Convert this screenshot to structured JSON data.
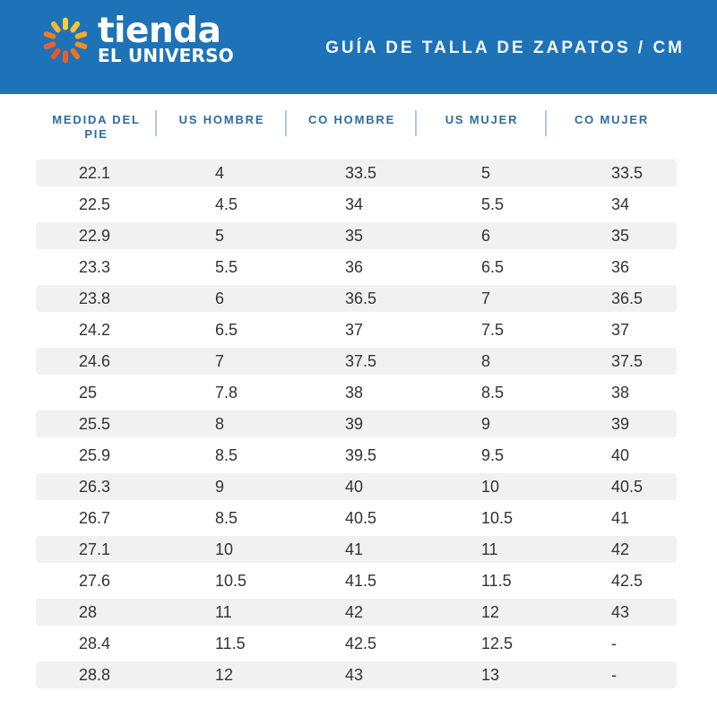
{
  "header": {
    "brand": {
      "line1": "tienda",
      "line2": "EL UNIVERSO"
    },
    "title": "GUÍA DE TALLA DE ZAPATOS / CM"
  },
  "colors": {
    "header_background": "#1E73B8",
    "column_header_text": "#2B6CA3",
    "column_divider": "#AFC9DE",
    "row_stripe": "#F1F1F1",
    "cell_text": "#333333",
    "logo_petal_colors": [
      "#FFCE33",
      "#FFC52F",
      "#FBAB2B",
      "#F68D26",
      "#F1721F",
      "#ED5F27",
      "#E8552C",
      "#EA5E2E",
      "#F07E28",
      "#FAB52D"
    ]
  },
  "chart_data": {
    "type": "table",
    "title": "GUÍA DE TALLA DE ZAPATOS / CM",
    "columns": [
      "MEDIDA DEL PIE",
      "US HOMBRE",
      "CO HOMBRE",
      "US MUJER",
      "CO MUJER"
    ],
    "rows": [
      [
        "22.1",
        "4",
        "33.5",
        "5",
        "33.5"
      ],
      [
        "22.5",
        "4.5",
        "34",
        "5.5",
        "34"
      ],
      [
        "22.9",
        "5",
        "35",
        "6",
        "35"
      ],
      [
        "23.3",
        "5.5",
        "36",
        "6.5",
        "36"
      ],
      [
        "23.8",
        "6",
        "36.5",
        "7",
        "36.5"
      ],
      [
        "24.2",
        "6.5",
        "37",
        "7.5",
        "37"
      ],
      [
        "24.6",
        "7",
        "37.5",
        "8",
        "37.5"
      ],
      [
        "25",
        "7.8",
        "38",
        "8.5",
        "38"
      ],
      [
        "25.5",
        "8",
        "39",
        "9",
        "39"
      ],
      [
        "25.9",
        "8.5",
        "39.5",
        "9.5",
        "40"
      ],
      [
        "26.3",
        "9",
        "40",
        "10",
        "40.5"
      ],
      [
        "26.7",
        "8.5",
        "40.5",
        "10.5",
        "41"
      ],
      [
        "27.1",
        "10",
        "41",
        "11",
        "42"
      ],
      [
        "27.6",
        "10.5",
        "41.5",
        "11.5",
        "42.5"
      ],
      [
        "28",
        "11",
        "42",
        "12",
        "43"
      ],
      [
        "28.4",
        "11.5",
        "42.5",
        "12.5",
        "-"
      ],
      [
        "28.8",
        "12",
        "43",
        "13",
        "-"
      ]
    ]
  }
}
